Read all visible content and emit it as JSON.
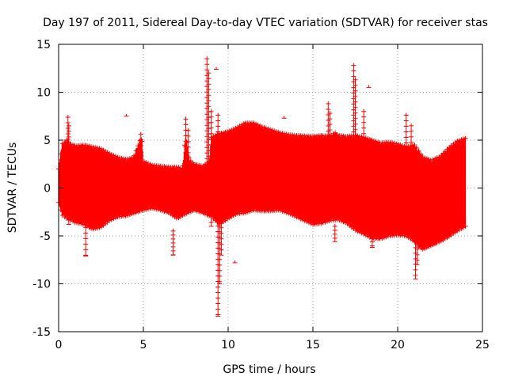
{
  "chart_data": {
    "type": "scatter",
    "title": "Day 197 of 2011, Sidereal Day-to-day VTEC variation (SDTVAR) for receiver stas",
    "xlabel": "GPS time / hours",
    "ylabel": "SDTVAR / TECUs",
    "xlim": [
      0,
      25
    ],
    "ylim": [
      -15,
      15
    ],
    "xticks": [
      0,
      5,
      10,
      15,
      20,
      25
    ],
    "yticks": [
      -15,
      -10,
      -5,
      0,
      5,
      10,
      15
    ],
    "xtick_labels": [
      "0",
      "5",
      "10",
      "15",
      "20",
      "25"
    ],
    "ytick_labels": [
      "-15",
      "-10",
      "-5",
      "0",
      "5",
      "10",
      "15"
    ],
    "grid": true,
    "marker": "+",
    "series_color": "#ff0000",
    "series": [
      {
        "name": "SDTVAR",
        "band_upper": [
          [
            0,
            2.0
          ],
          [
            0.2,
            4.6
          ],
          [
            0.5,
            5.0
          ],
          [
            0.7,
            4.6
          ],
          [
            1.0,
            4.4
          ],
          [
            1.5,
            4.5
          ],
          [
            2.0,
            4.3
          ],
          [
            2.5,
            4.1
          ],
          [
            3.0,
            3.6
          ],
          [
            3.5,
            3.2
          ],
          [
            4.0,
            3.0
          ],
          [
            4.4,
            3.2
          ],
          [
            4.7,
            4.5
          ],
          [
            4.9,
            5.4
          ],
          [
            5.0,
            2.8
          ],
          [
            5.5,
            2.4
          ],
          [
            6.0,
            2.3
          ],
          [
            6.5,
            2.2
          ],
          [
            7.0,
            2.2
          ],
          [
            7.3,
            2.0
          ],
          [
            7.5,
            5.5
          ],
          [
            7.7,
            3.0
          ],
          [
            8.0,
            2.5
          ],
          [
            8.5,
            2.3
          ],
          [
            8.9,
            2.8
          ],
          [
            9.0,
            5.3
          ],
          [
            9.5,
            5.7
          ],
          [
            10.0,
            5.9
          ],
          [
            10.5,
            6.3
          ],
          [
            11.0,
            6.8
          ],
          [
            11.5,
            6.8
          ],
          [
            12.0,
            6.4
          ],
          [
            12.5,
            6.1
          ],
          [
            13.0,
            5.8
          ],
          [
            13.5,
            5.6
          ],
          [
            14.0,
            5.5
          ],
          [
            15.0,
            5.4
          ],
          [
            15.5,
            5.5
          ],
          [
            16.0,
            5.4
          ],
          [
            16.3,
            5.8
          ],
          [
            16.5,
            5.5
          ],
          [
            17.0,
            5.4
          ],
          [
            17.5,
            5.5
          ],
          [
            18.0,
            5.3
          ],
          [
            18.5,
            5.0
          ],
          [
            19.0,
            4.7
          ],
          [
            19.5,
            4.8
          ],
          [
            20.0,
            4.6
          ],
          [
            20.5,
            4.3
          ],
          [
            21.0,
            4.5
          ],
          [
            21.3,
            3.7
          ],
          [
            21.5,
            3.2
          ],
          [
            22.0,
            2.9
          ],
          [
            22.5,
            3.3
          ],
          [
            23.0,
            4.2
          ],
          [
            23.5,
            4.9
          ],
          [
            24.0,
            5.2
          ]
        ],
        "band_lower": [
          [
            0,
            -1.5
          ],
          [
            0.2,
            -2.8
          ],
          [
            0.5,
            -3.2
          ],
          [
            1.0,
            -3.6
          ],
          [
            1.5,
            -3.8
          ],
          [
            2.0,
            -4.3
          ],
          [
            2.5,
            -4.1
          ],
          [
            3.0,
            -3.4
          ],
          [
            3.5,
            -3.0
          ],
          [
            4.0,
            -2.9
          ],
          [
            4.5,
            -2.6
          ],
          [
            5.0,
            -2.3
          ],
          [
            5.5,
            -2.1
          ],
          [
            6.0,
            -2.3
          ],
          [
            6.5,
            -2.6
          ],
          [
            7.0,
            -3.2
          ],
          [
            7.5,
            -2.7
          ],
          [
            8.0,
            -2.3
          ],
          [
            8.5,
            -2.6
          ],
          [
            9.0,
            -3.0
          ],
          [
            9.5,
            -3.8
          ],
          [
            10.0,
            -3.2
          ],
          [
            10.5,
            -2.7
          ],
          [
            11.0,
            -2.6
          ],
          [
            11.5,
            -2.3
          ],
          [
            12.0,
            -2.4
          ],
          [
            12.5,
            -2.4
          ],
          [
            13.0,
            -2.3
          ],
          [
            13.5,
            -2.6
          ],
          [
            14.0,
            -3.0
          ],
          [
            14.5,
            -3.4
          ],
          [
            15.0,
            -3.8
          ],
          [
            15.5,
            -3.7
          ],
          [
            16.0,
            -3.4
          ],
          [
            16.5,
            -3.3
          ],
          [
            17.0,
            -3.7
          ],
          [
            17.5,
            -4.4
          ],
          [
            18.0,
            -4.8
          ],
          [
            18.5,
            -5.3
          ],
          [
            19.0,
            -5.3
          ],
          [
            19.5,
            -5.0
          ],
          [
            20.0,
            -4.9
          ],
          [
            20.5,
            -5.0
          ],
          [
            21.0,
            -5.6
          ],
          [
            21.3,
            -6.2
          ],
          [
            21.5,
            -6.4
          ],
          [
            22.0,
            -6.0
          ],
          [
            22.5,
            -5.6
          ],
          [
            23.0,
            -5.1
          ],
          [
            23.5,
            -4.5
          ],
          [
            24.0,
            -4.0
          ]
        ],
        "spikes": [
          [
            0.55,
            7.4,
            -0.5
          ],
          [
            0.6,
            6.5,
            -3.8
          ],
          [
            1.6,
            0.5,
            -7.1
          ],
          [
            4.0,
            7.5,
            7.5
          ],
          [
            4.85,
            5.6,
            -2.0
          ],
          [
            6.75,
            -4.5,
            -7.0
          ],
          [
            7.5,
            7.2,
            -1.0
          ],
          [
            7.65,
            6.0,
            -1.5
          ],
          [
            8.75,
            13.5,
            -2.0
          ],
          [
            8.85,
            12.0,
            -2.5
          ],
          [
            9.0,
            8.0,
            -4.0
          ],
          [
            9.3,
            12.4,
            12.4
          ],
          [
            9.4,
            7.6,
            -13.4
          ],
          [
            9.5,
            -4.0,
            -10.0
          ],
          [
            9.6,
            -3.0,
            -7.0
          ],
          [
            10.4,
            -7.8,
            -7.8
          ],
          [
            13.3,
            7.3,
            7.3
          ],
          [
            15.9,
            8.8,
            -2.5
          ],
          [
            16.0,
            7.8,
            -3.2
          ],
          [
            16.3,
            -4.0,
            -5.6
          ],
          [
            17.4,
            12.8,
            -3.0
          ],
          [
            17.5,
            11.3,
            -2.5
          ],
          [
            18.3,
            10.5,
            10.5
          ],
          [
            18.0,
            8.0,
            -1.5
          ],
          [
            18.5,
            -4.8,
            -6.2
          ],
          [
            20.5,
            7.6,
            -2.5
          ],
          [
            20.8,
            6.5,
            -2.0
          ],
          [
            21.05,
            -4.5,
            -9.5
          ],
          [
            21.15,
            -3.5,
            -8.0
          ],
          [
            21.5,
            -5.5,
            -6.4
          ]
        ]
      }
    ]
  }
}
